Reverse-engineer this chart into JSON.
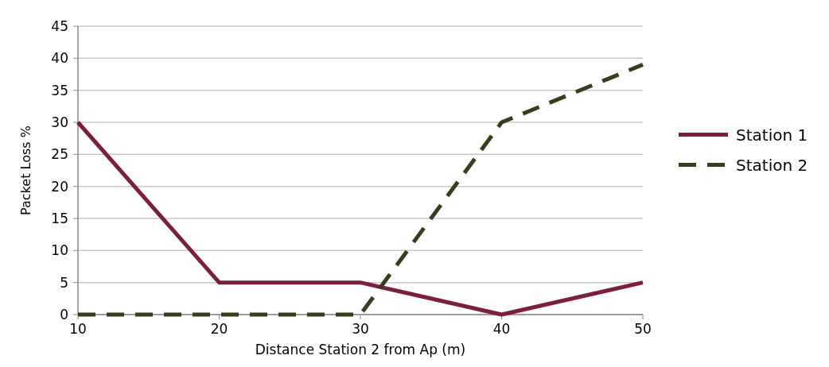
{
  "chart_data": {
    "type": "line",
    "xlabel": "Distance Station 2 from Ap (m)",
    "ylabel": "Packet  Loss %",
    "x": [
      10,
      20,
      30,
      40,
      50
    ],
    "series": [
      {
        "name": "Station 1",
        "color": "#7a1f3e",
        "values": [
          30,
          5,
          5,
          0,
          5
        ],
        "line_style": "solid"
      },
      {
        "name": "Station 2",
        "color": "#3a3d1c",
        "values": [
          0,
          0,
          0,
          30,
          39
        ],
        "line_style": "dashed"
      }
    ],
    "xlim": [
      10,
      50
    ],
    "xticks": [
      10,
      20,
      30,
      40,
      50
    ],
    "ylim": [
      0,
      45
    ],
    "yticks": [
      0,
      5,
      10,
      15,
      20,
      25,
      30,
      35,
      40,
      45
    ],
    "grid": "y",
    "legend": "right",
    "marker": "none"
  }
}
